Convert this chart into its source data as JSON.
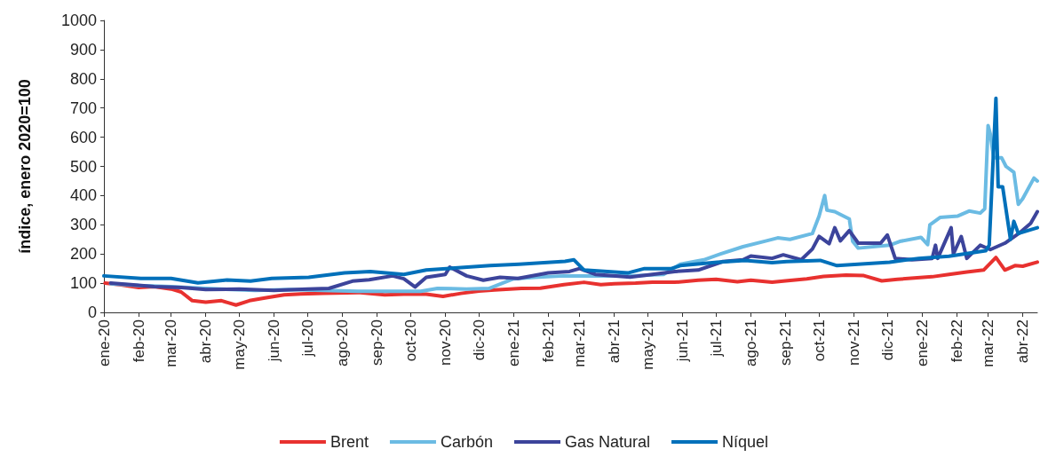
{
  "chart_data": {
    "type": "line",
    "ylabel": "índice, enero 2020=100",
    "xlim": [
      "2020-01-01",
      "2022-04-14"
    ],
    "ylim": [
      0,
      1000
    ],
    "yticks": [
      0,
      100,
      200,
      300,
      400,
      500,
      600,
      700,
      800,
      900,
      1000
    ],
    "xticks": [
      {
        "value": "2020-01-01",
        "label": "ene-20"
      },
      {
        "value": "2020-02-01",
        "label": "feb-20"
      },
      {
        "value": "2020-03-01",
        "label": "mar-20"
      },
      {
        "value": "2020-04-01",
        "label": "abr-20"
      },
      {
        "value": "2020-05-01",
        "label": "may-20"
      },
      {
        "value": "2020-06-01",
        "label": "jun-20"
      },
      {
        "value": "2020-07-01",
        "label": "jul-20"
      },
      {
        "value": "2020-08-01",
        "label": "ago-20"
      },
      {
        "value": "2020-09-01",
        "label": "sep-20"
      },
      {
        "value": "2020-10-01",
        "label": "oct-20"
      },
      {
        "value": "2020-11-01",
        "label": "nov-20"
      },
      {
        "value": "2020-12-01",
        "label": "dic-20"
      },
      {
        "value": "2021-01-01",
        "label": "ene-21"
      },
      {
        "value": "2021-02-01",
        "label": "feb-21"
      },
      {
        "value": "2021-03-01",
        "label": "mar-21"
      },
      {
        "value": "2021-04-01",
        "label": "abr-21"
      },
      {
        "value": "2021-05-01",
        "label": "may-21"
      },
      {
        "value": "2021-06-01",
        "label": "jun-21"
      },
      {
        "value": "2021-07-01",
        "label": "jul-21"
      },
      {
        "value": "2021-08-01",
        "label": "ago-21"
      },
      {
        "value": "2021-09-01",
        "label": "sep-21"
      },
      {
        "value": "2021-10-01",
        "label": "oct-21"
      },
      {
        "value": "2021-11-01",
        "label": "nov-21"
      },
      {
        "value": "2021-12-01",
        "label": "dic-21"
      },
      {
        "value": "2022-01-01",
        "label": "ene-22"
      },
      {
        "value": "2022-02-01",
        "label": "feb-22"
      },
      {
        "value": "2022-03-01",
        "label": "mar-22"
      },
      {
        "value": "2022-04-01",
        "label": "abr-22"
      }
    ],
    "grid": false,
    "legend": "bottom",
    "marker": "none",
    "line_style": "solid",
    "series": [
      {
        "name": "Brent",
        "color": "#e8312f",
        "x": [
          "2020-01-02",
          "2020-01-15",
          "2020-02-01",
          "2020-02-15",
          "2020-03-01",
          "2020-03-10",
          "2020-03-20",
          "2020-04-01",
          "2020-04-15",
          "2020-04-28",
          "2020-05-10",
          "2020-05-25",
          "2020-06-10",
          "2020-06-25",
          "2020-07-15",
          "2020-08-15",
          "2020-09-08",
          "2020-09-25",
          "2020-10-15",
          "2020-10-30",
          "2020-11-15",
          "2020-12-01",
          "2020-12-15",
          "2021-01-08",
          "2021-01-25",
          "2021-02-15",
          "2021-03-05",
          "2021-03-20",
          "2021-04-01",
          "2021-04-20",
          "2021-05-05",
          "2021-05-25",
          "2021-06-15",
          "2021-07-01",
          "2021-07-20",
          "2021-08-01",
          "2021-08-20",
          "2021-09-01",
          "2021-09-20",
          "2021-10-05",
          "2021-10-25",
          "2021-11-10",
          "2021-11-26",
          "2021-12-10",
          "2021-12-25",
          "2022-01-10",
          "2022-01-25",
          "2022-02-10",
          "2022-02-25",
          "2022-03-08",
          "2022-03-16",
          "2022-03-25",
          "2022-04-01",
          "2022-04-14"
        ],
        "values": [
          100,
          95,
          85,
          88,
          80,
          70,
          40,
          35,
          40,
          25,
          40,
          50,
          60,
          63,
          65,
          68,
          60,
          62,
          62,
          55,
          65,
          73,
          77,
          82,
          83,
          95,
          103,
          95,
          98,
          100,
          103,
          103,
          110,
          113,
          105,
          110,
          103,
          108,
          115,
          123,
          128,
          126,
          108,
          113,
          118,
          122,
          130,
          138,
          145,
          188,
          145,
          160,
          158,
          172
        ]
      },
      {
        "name": "Carbón",
        "color": "#6bbbe3",
        "x": [
          "2020-01-07",
          "2020-02-01",
          "2020-03-01",
          "2020-04-01",
          "2020-05-15",
          "2020-06-15",
          "2020-07-15",
          "2020-08-15",
          "2020-09-15",
          "2020-10-10",
          "2020-10-25",
          "2020-11-20",
          "2020-12-10",
          "2020-12-22",
          "2021-01-01",
          "2021-01-20",
          "2021-02-15",
          "2021-03-15",
          "2021-04-15",
          "2021-05-15",
          "2021-05-30",
          "2021-06-20",
          "2021-07-05",
          "2021-07-25",
          "2021-08-15",
          "2021-08-25",
          "2021-09-05",
          "2021-09-25",
          "2021-10-01",
          "2021-10-06",
          "2021-10-08",
          "2021-10-15",
          "2021-10-28",
          "2021-10-31",
          "2021-11-05",
          "2021-12-03",
          "2021-12-12",
          "2021-12-31",
          "2022-01-06",
          "2022-01-08",
          "2022-01-17",
          "2022-02-02",
          "2022-02-12",
          "2022-02-22",
          "2022-02-26",
          "2022-03-01",
          "2022-03-03",
          "2022-03-06",
          "2022-03-13",
          "2022-03-17",
          "2022-03-24",
          "2022-03-28",
          "2022-04-01",
          "2022-04-11",
          "2022-04-14"
        ],
        "values": [
          98,
          92,
          88,
          82,
          75,
          78,
          75,
          72,
          72,
          72,
          82,
          80,
          82,
          100,
          115,
          120,
          125,
          125,
          125,
          130,
          165,
          180,
          200,
          225,
          245,
          255,
          250,
          270,
          330,
          400,
          350,
          345,
          320,
          243,
          220,
          230,
          243,
          257,
          232,
          300,
          325,
          330,
          347,
          340,
          355,
          640,
          610,
          530,
          530,
          500,
          480,
          370,
          390,
          460,
          450
        ]
      },
      {
        "name": "Gas Natural",
        "color": "#3c449b",
        "x": [
          "2020-01-07",
          "2020-01-25",
          "2020-02-15",
          "2020-03-10",
          "2020-04-01",
          "2020-05-01",
          "2020-06-01",
          "2020-07-01",
          "2020-07-20",
          "2020-08-10",
          "2020-08-25",
          "2020-09-15",
          "2020-09-25",
          "2020-10-05",
          "2020-10-15",
          "2020-11-01",
          "2020-11-05",
          "2020-11-20",
          "2020-12-05",
          "2020-12-20",
          "2021-01-05",
          "2021-02-01",
          "2021-02-20",
          "2021-03-01",
          "2021-03-15",
          "2021-04-15",
          "2021-05-05",
          "2021-05-25",
          "2021-06-15",
          "2021-07-07",
          "2021-07-25",
          "2021-08-01",
          "2021-08-20",
          "2021-08-30",
          "2021-09-15",
          "2021-09-25",
          "2021-10-01",
          "2021-10-10",
          "2021-10-15",
          "2021-10-20",
          "2021-10-28",
          "2021-11-05",
          "2021-11-25",
          "2021-12-01",
          "2021-12-08",
          "2021-12-23",
          "2022-01-10",
          "2022-01-13",
          "2022-01-15",
          "2022-01-27",
          "2022-01-29",
          "2022-02-05",
          "2022-02-10",
          "2022-02-22",
          "2022-03-03",
          "2022-03-16",
          "2022-03-30",
          "2022-04-08",
          "2022-04-14"
        ],
        "values": [
          100,
          95,
          88,
          85,
          78,
          80,
          75,
          80,
          82,
          107,
          112,
          125,
          115,
          87,
          120,
          130,
          155,
          125,
          110,
          120,
          116,
          135,
          140,
          150,
          130,
          121,
          130,
          140,
          145,
          174,
          180,
          193,
          185,
          197,
          180,
          217,
          260,
          235,
          290,
          245,
          280,
          237,
          237,
          265,
          185,
          180,
          185,
          230,
          185,
          290,
          200,
          260,
          185,
          230,
          215,
          237,
          275,
          305,
          345
        ]
      },
      {
        "name": "Níquel",
        "color": "#0070ba",
        "x": [
          "2020-01-01",
          "2020-02-03",
          "2020-03-01",
          "2020-03-25",
          "2020-04-20",
          "2020-05-11",
          "2020-05-30",
          "2020-07-02",
          "2020-08-03",
          "2020-08-26",
          "2020-09-25",
          "2020-10-15",
          "2020-12-11",
          "2021-01-06",
          "2021-02-16",
          "2021-02-24",
          "2021-03-05",
          "2021-04-13",
          "2021-04-28",
          "2021-05-22",
          "2021-05-30",
          "2021-07-02",
          "2021-07-27",
          "2021-08-20",
          "2021-09-02",
          "2021-10-02",
          "2021-10-17",
          "2021-12-03",
          "2021-12-29",
          "2022-01-25",
          "2022-02-27",
          "2022-03-02",
          "2022-03-08",
          "2022-03-10",
          "2022-03-14",
          "2022-03-21",
          "2022-03-24",
          "2022-03-28",
          "2022-04-08",
          "2022-04-14"
        ],
        "values": [
          125,
          116,
          116,
          101,
          111,
          107,
          116,
          120,
          135,
          140,
          130,
          145,
          160,
          165,
          175,
          180,
          145,
          135,
          150,
          150,
          160,
          172,
          178,
          170,
          174,
          178,
          160,
          172,
          185,
          192,
          211,
          230,
          733,
          430,
          430,
          250,
          312,
          270,
          283,
          290
        ]
      }
    ]
  }
}
